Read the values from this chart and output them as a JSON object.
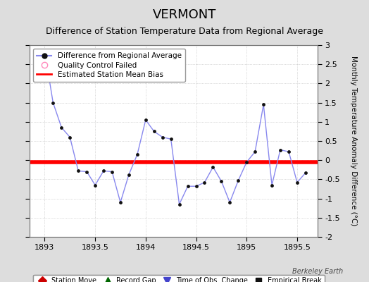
{
  "title": "VERMONT",
  "subtitle": "Difference of Station Temperature Data from Regional Average",
  "ylabel": "Monthly Temperature Anomaly Difference (°C)",
  "bias_value": -0.05,
  "xlim": [
    1892.85,
    1895.7
  ],
  "ylim": [
    -2.0,
    3.0
  ],
  "xticks": [
    1893,
    1893.5,
    1894,
    1894.5,
    1895,
    1895.5
  ],
  "yticks": [
    -2,
    -1.5,
    -1,
    -0.5,
    0,
    0.5,
    1,
    1.5,
    2,
    2.5,
    3
  ],
  "line_color": "#4444cc",
  "line_color_light": "#8888ee",
  "marker_color": "#111111",
  "bias_color": "#ff0000",
  "background_color": "#dddddd",
  "plot_bg_color": "#ffffff",
  "x_data": [
    1893.0,
    1893.083,
    1893.167,
    1893.25,
    1893.333,
    1893.417,
    1893.5,
    1893.583,
    1893.667,
    1893.75,
    1893.833,
    1893.917,
    1894.0,
    1894.083,
    1894.167,
    1894.25,
    1894.333,
    1894.417,
    1894.5,
    1894.583,
    1894.667,
    1894.75,
    1894.833,
    1894.917,
    1895.0,
    1895.083,
    1895.167,
    1895.25,
    1895.333,
    1895.417,
    1895.5,
    1895.583
  ],
  "y_data": [
    2.85,
    1.5,
    0.85,
    0.6,
    -0.28,
    -0.3,
    -0.65,
    -0.28,
    -0.3,
    -1.1,
    -0.38,
    0.15,
    1.05,
    0.75,
    0.6,
    0.55,
    -1.15,
    -0.68,
    -0.68,
    -0.58,
    -0.18,
    -0.55,
    -1.1,
    -0.53,
    -0.05,
    0.22,
    1.45,
    -0.65,
    0.27,
    0.22,
    -0.58,
    -0.33
  ],
  "bottom_legend": [
    {
      "label": "Station Move",
      "color": "#cc0000",
      "marker": "D",
      "markersize": 6
    },
    {
      "label": "Record Gap",
      "color": "#006600",
      "marker": "^",
      "markersize": 7
    },
    {
      "label": "Time of Obs. Change",
      "color": "#4444cc",
      "marker": "v",
      "markersize": 7
    },
    {
      "label": "Empirical Break",
      "color": "#111111",
      "marker": "s",
      "markersize": 6
    }
  ],
  "watermark": "Berkeley Earth",
  "title_fontsize": 13,
  "subtitle_fontsize": 9,
  "axis_fontsize": 8,
  "ylabel_fontsize": 7.5
}
